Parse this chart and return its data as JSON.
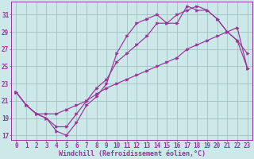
{
  "title": "",
  "xlabel": "Windchill (Refroidissement éolien,°C)",
  "bg_color": "#cce8e8",
  "line_color": "#993399",
  "grid_color": "#99bbbb",
  "xlim": [
    -0.5,
    23.5
  ],
  "ylim": [
    16.5,
    32.5
  ],
  "xticks": [
    0,
    1,
    2,
    3,
    4,
    5,
    6,
    7,
    8,
    9,
    10,
    11,
    12,
    13,
    14,
    15,
    16,
    17,
    18,
    19,
    20,
    21,
    22,
    23
  ],
  "yticks": [
    17,
    19,
    21,
    23,
    25,
    27,
    29,
    31
  ],
  "line1_x": [
    0,
    1,
    2,
    3,
    4,
    5,
    6,
    7,
    8,
    9,
    10,
    11,
    12,
    13,
    14,
    15,
    16,
    17,
    18,
    19,
    20,
    21,
    22,
    23
  ],
  "line1_y": [
    22,
    20.5,
    19.5,
    19.0,
    17.5,
    17.0,
    18.5,
    20.5,
    21.5,
    23.0,
    26.5,
    28.5,
    30.0,
    30.5,
    31.0,
    30.0,
    30.0,
    32.0,
    31.5,
    31.5,
    30.5,
    29.0,
    28.0,
    24.8
  ],
  "line2_x": [
    0,
    1,
    2,
    3,
    4,
    5,
    6,
    7,
    8,
    9,
    10,
    11,
    12,
    13,
    14,
    15,
    16,
    17,
    18,
    19,
    20,
    21,
    22,
    23
  ],
  "line2_y": [
    22,
    20.5,
    19.5,
    19.0,
    18.0,
    18.0,
    19.5,
    21.0,
    22.5,
    23.5,
    25.5,
    26.5,
    27.5,
    28.5,
    30.0,
    30.0,
    31.0,
    31.5,
    32.0,
    31.5,
    30.5,
    29.0,
    28.0,
    26.5
  ],
  "line3_x": [
    0,
    1,
    2,
    3,
    4,
    5,
    6,
    7,
    8,
    9,
    10,
    11,
    12,
    13,
    14,
    15,
    16,
    17,
    18,
    19,
    20,
    21,
    22,
    23
  ],
  "line3_y": [
    22,
    20.5,
    19.5,
    19.5,
    19.5,
    20.0,
    20.5,
    21.0,
    21.8,
    22.5,
    23.0,
    23.5,
    24.0,
    24.5,
    25.0,
    25.5,
    26.0,
    27.0,
    27.5,
    28.0,
    28.5,
    29.0,
    29.5,
    24.8
  ],
  "tick_fontsize": 5.5,
  "xlabel_fontsize": 6.0,
  "marker_size": 2.5,
  "line_width": 0.85
}
